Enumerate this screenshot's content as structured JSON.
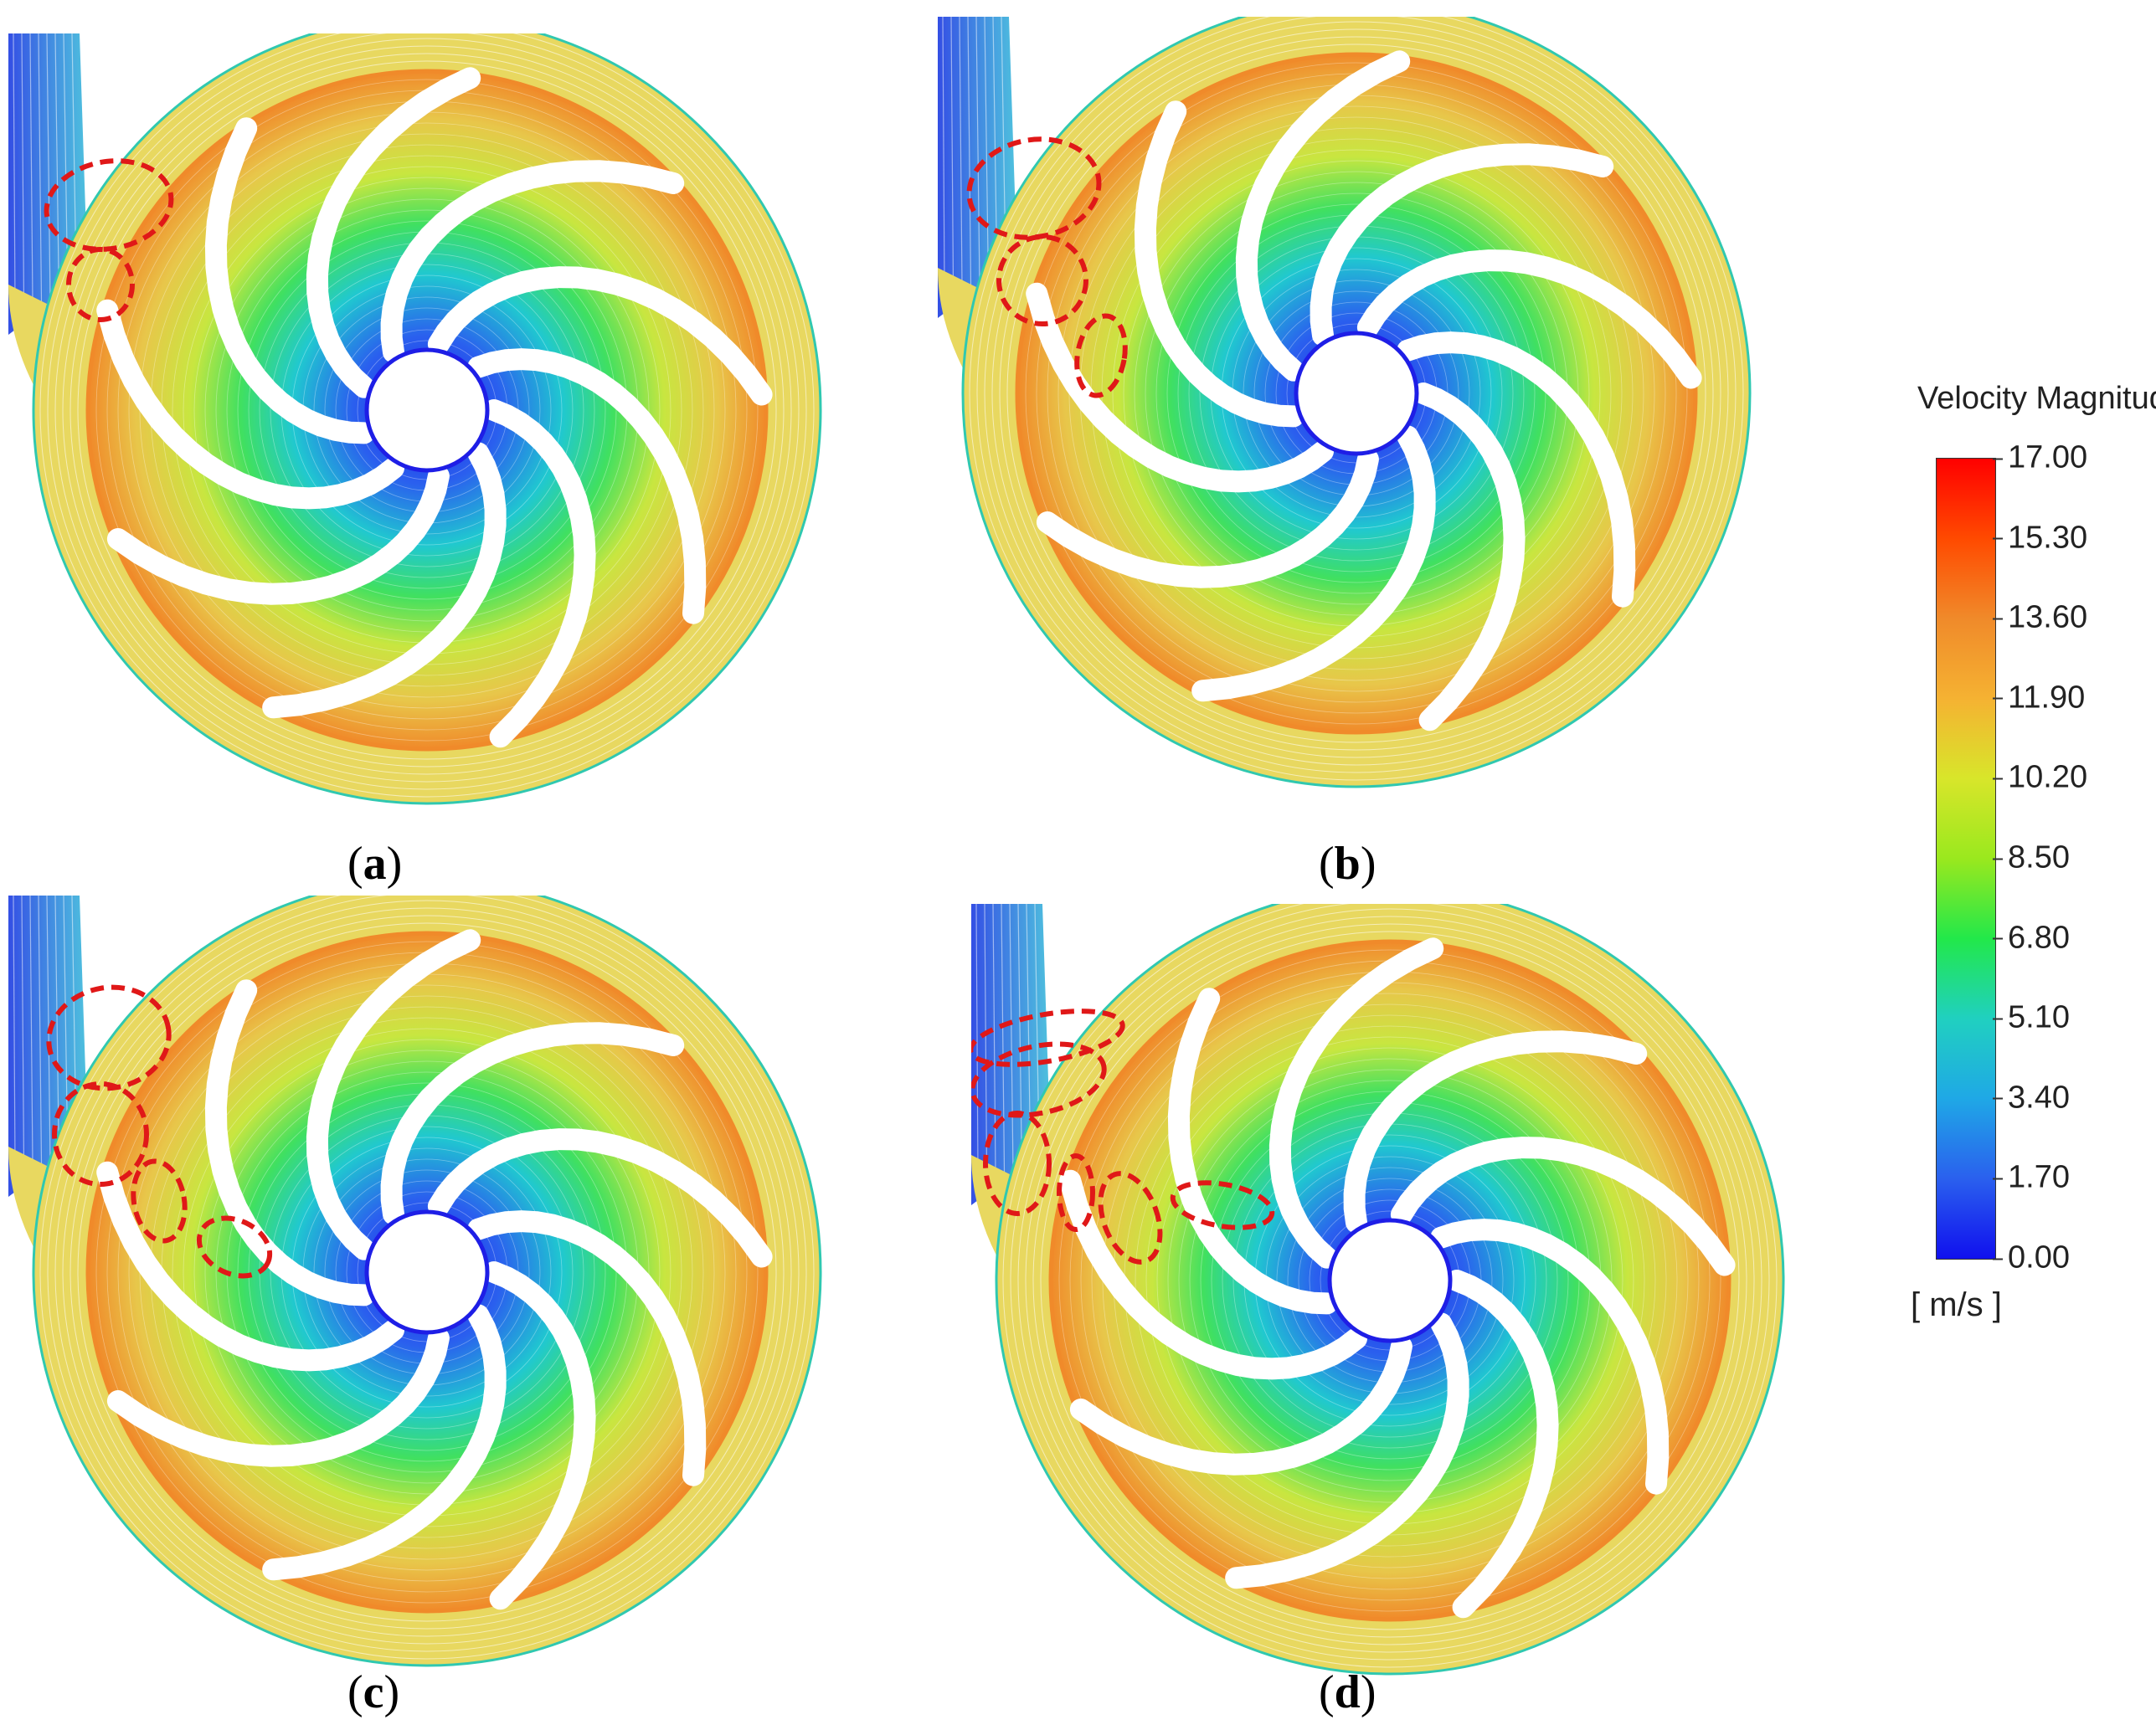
{
  "panels": [
    {
      "label": "a",
      "vortices": 2
    },
    {
      "label": "b",
      "vortices": 3
    },
    {
      "label": "c",
      "vortices": 4
    },
    {
      "label": "d",
      "vortices": 6
    }
  ],
  "legend": {
    "title": "Velocity Magnitude",
    "unit": "[ m/s ]",
    "ticks": [
      "17.00",
      "15.30",
      "13.60",
      "11.90",
      "10.20",
      "8.50",
      "6.80",
      "5.10",
      "3.40",
      "1.70",
      "0.00"
    ],
    "colors": [
      "#ff0000",
      "#ff4a00",
      "#f08a2a",
      "#f5b232",
      "#d8e62a",
      "#9ae81e",
      "#22e84a",
      "#20d0c0",
      "#1fa8e6",
      "#2a60ee",
      "#1010ee"
    ]
  },
  "colors": {
    "impeller_outer": "#f08a2a",
    "impeller_mid": "#e8c64a",
    "impeller_inner": "#1e1ee6",
    "volute": "#e8d860",
    "inlet": "#3a8ae8",
    "vortex_marker": "#e01818"
  }
}
